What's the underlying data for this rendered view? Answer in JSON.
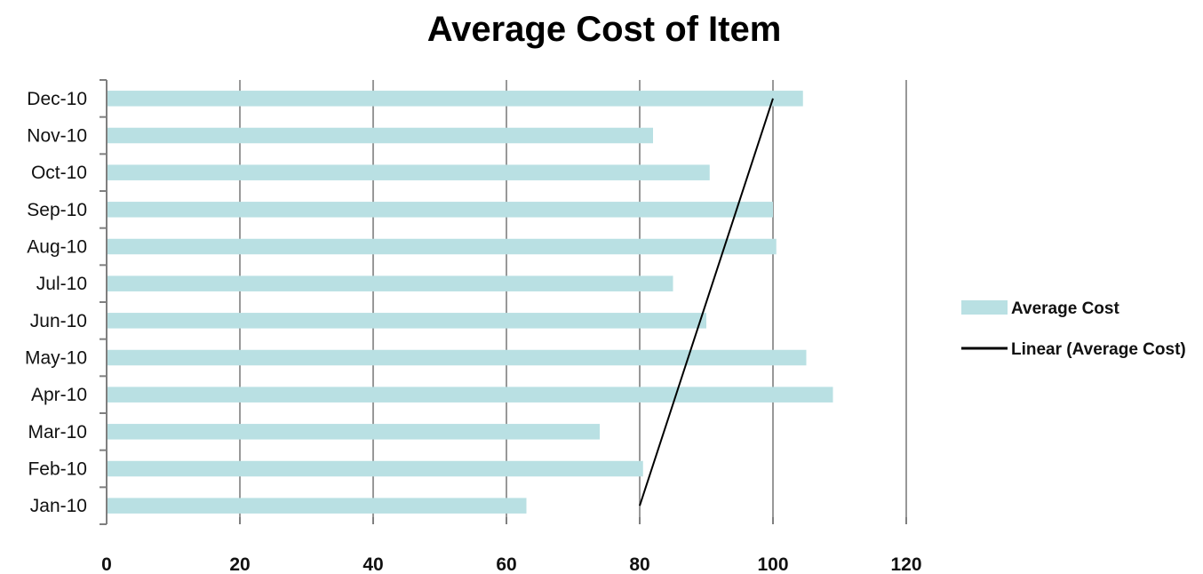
{
  "chart_data": {
    "type": "bar",
    "orientation": "horizontal",
    "title": "Average Cost of Item",
    "categories": [
      "Jan-10",
      "Feb-10",
      "Mar-10",
      "Apr-10",
      "May-10",
      "Jun-10",
      "Jul-10",
      "Aug-10",
      "Sep-10",
      "Oct-10",
      "Nov-10",
      "Dec-10"
    ],
    "series": [
      {
        "name": "Average Cost",
        "color": "#b9e0e3",
        "values": [
          63,
          80.5,
          74,
          109,
          105,
          90,
          85,
          100.5,
          100,
          90.5,
          82,
          104.5
        ]
      }
    ],
    "trendline": {
      "name": "Linear (Average Cost)",
      "type": "linear",
      "color": "#000000",
      "start": 80,
      "end": 100
    },
    "xlim": [
      0,
      120
    ],
    "xticks": [
      0,
      20,
      40,
      60,
      80,
      100,
      120
    ],
    "grid": true,
    "legend": "right"
  }
}
